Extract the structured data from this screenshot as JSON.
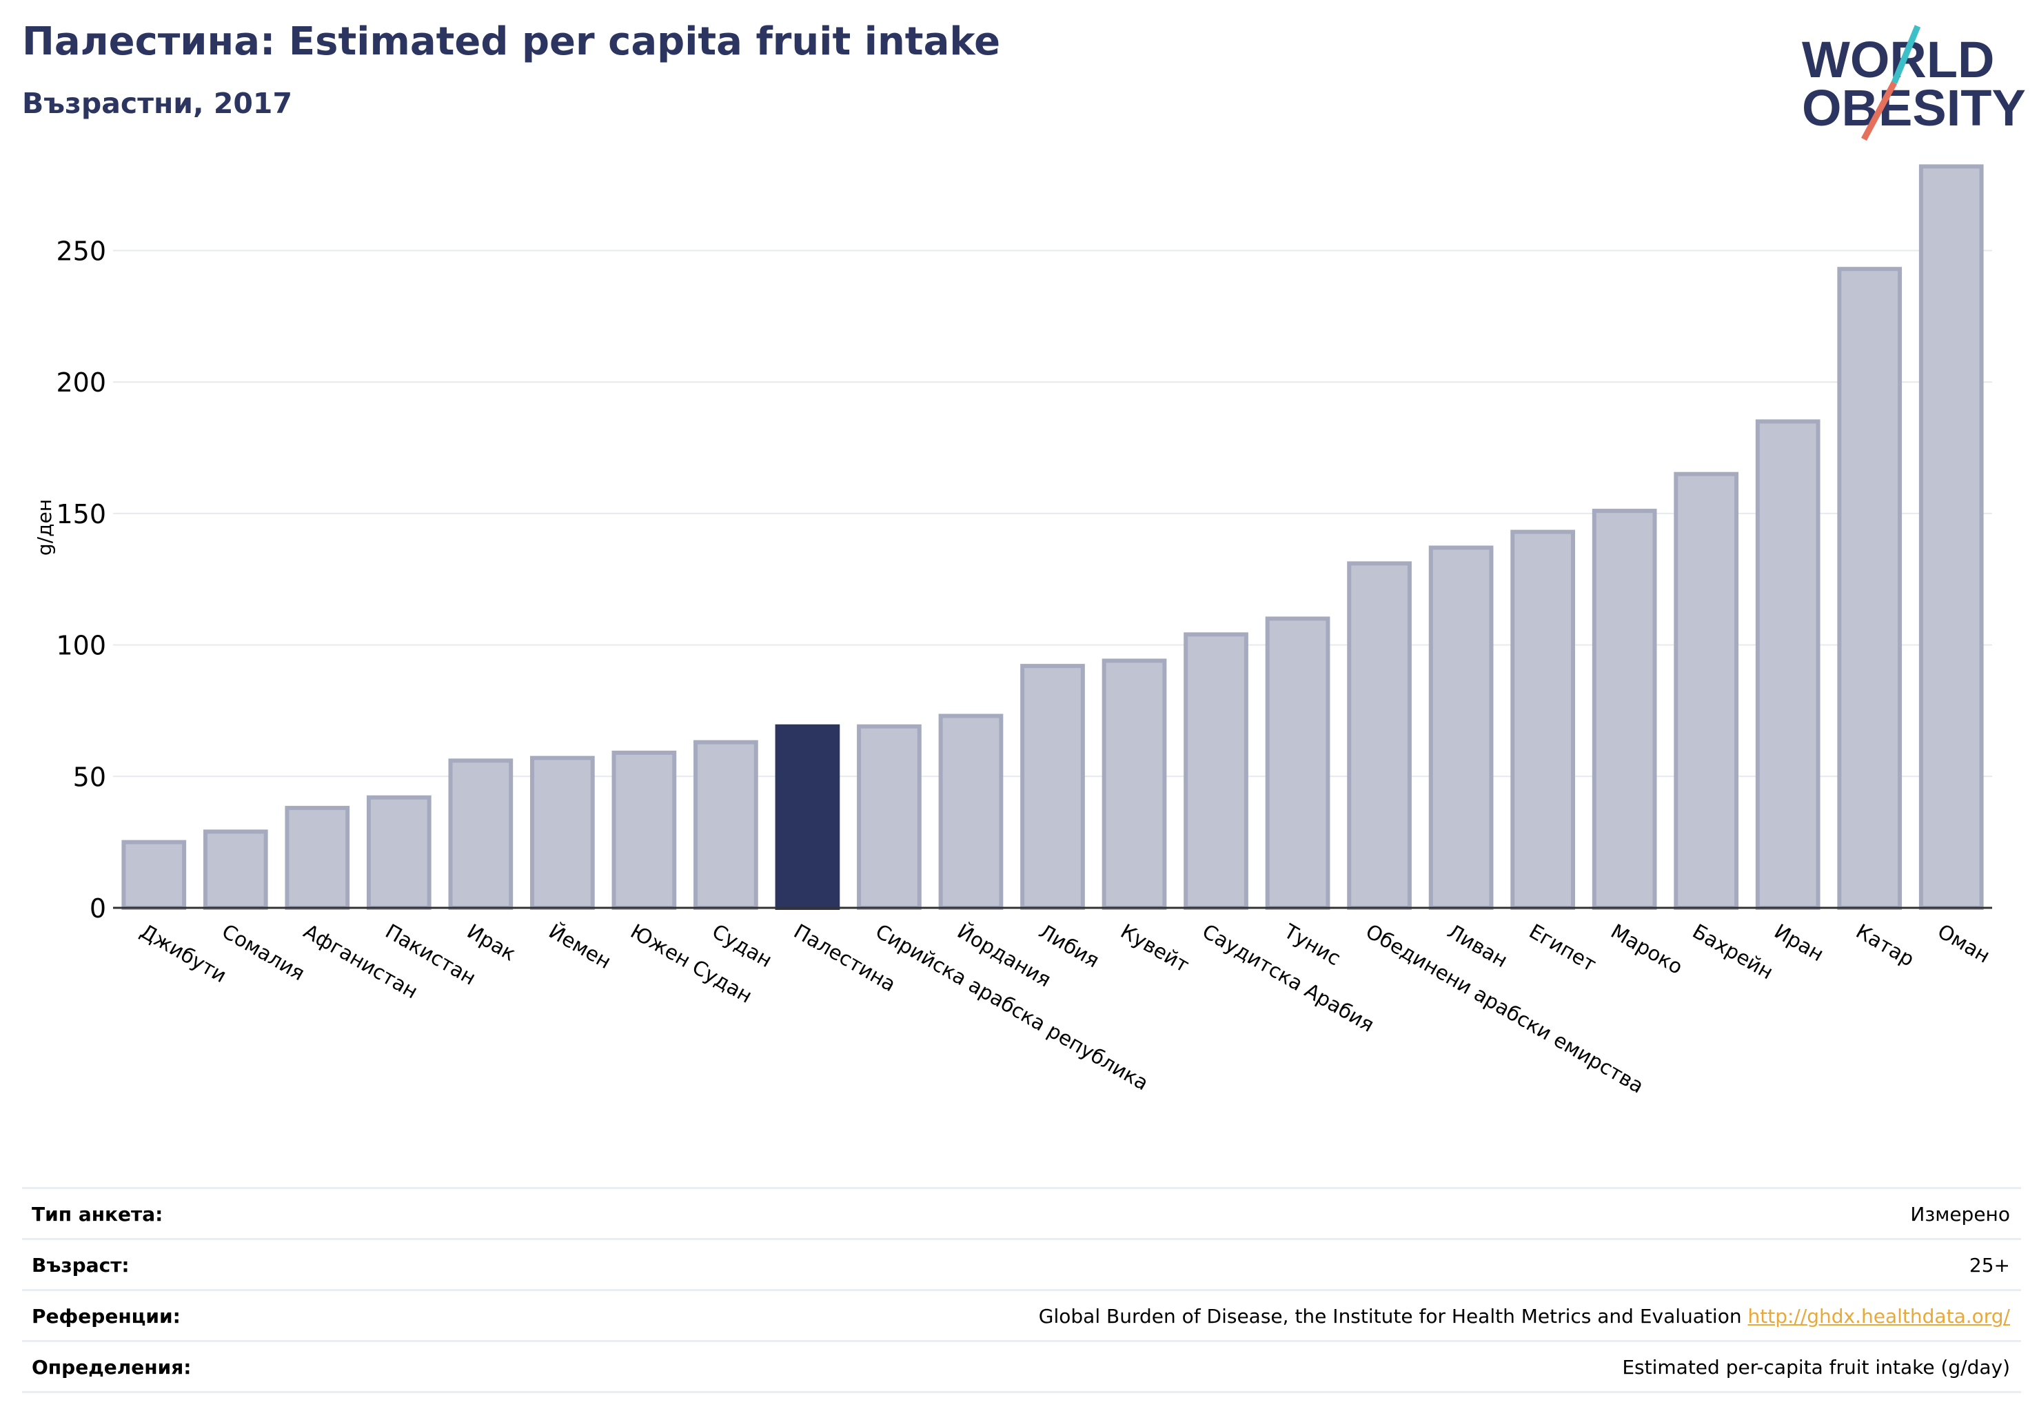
{
  "header": {
    "title": "Палестина: Estimated per capita fruit intake",
    "subtitle": "Възрастни, 2017"
  },
  "logo": {
    "line1": "WORLD",
    "line2": "OBESITY",
    "accent_colors": [
      "#3cbfc6",
      "#e5705c"
    ],
    "text_color": "#2b3560"
  },
  "colors": {
    "bar": "#c0c3d1",
    "bar_border": "#a5aabf",
    "highlight": "#2b3560",
    "grid": "#e6e9ee",
    "axis": "#333333"
  },
  "chart_data": {
    "type": "bar",
    "ylabel": "g/ден",
    "ylim": [
      0,
      285
    ],
    "yticks": [
      0,
      50,
      100,
      150,
      200,
      250
    ],
    "grid": true,
    "highlight": "Палестина",
    "categories": [
      "Джибути",
      "Сомалия",
      "Афганистан",
      "Пакистан",
      "Ирак",
      "Йемен",
      "Южен Судан",
      "Судан",
      "Палестина",
      "Сирийска арабска република",
      "Йордания",
      "Либия",
      "Кувейт",
      "Саудитска Арабия",
      "Тунис",
      "Обединени арабски емирства",
      "Ливан",
      "Египет",
      "Мароко",
      "Бахрейн",
      "Иран",
      "Катар",
      "Оман"
    ],
    "values": [
      25,
      29,
      38,
      42,
      56,
      57,
      59,
      63,
      69,
      69,
      73,
      92,
      94,
      104,
      110,
      131,
      137,
      143,
      151,
      165,
      185,
      243,
      282
    ]
  },
  "info": [
    {
      "label": "Тип анкета:",
      "value": "Измерено"
    },
    {
      "label": "Възраст:",
      "value": "25+"
    },
    {
      "label": "Референции:",
      "value": "Global Burden of Disease, the Institute for Health Metrics and Evaluation ",
      "link": "http://ghdx.healthdata.org/"
    },
    {
      "label": "Определения:",
      "value": "Estimated per-capita fruit intake (g/day)"
    }
  ]
}
